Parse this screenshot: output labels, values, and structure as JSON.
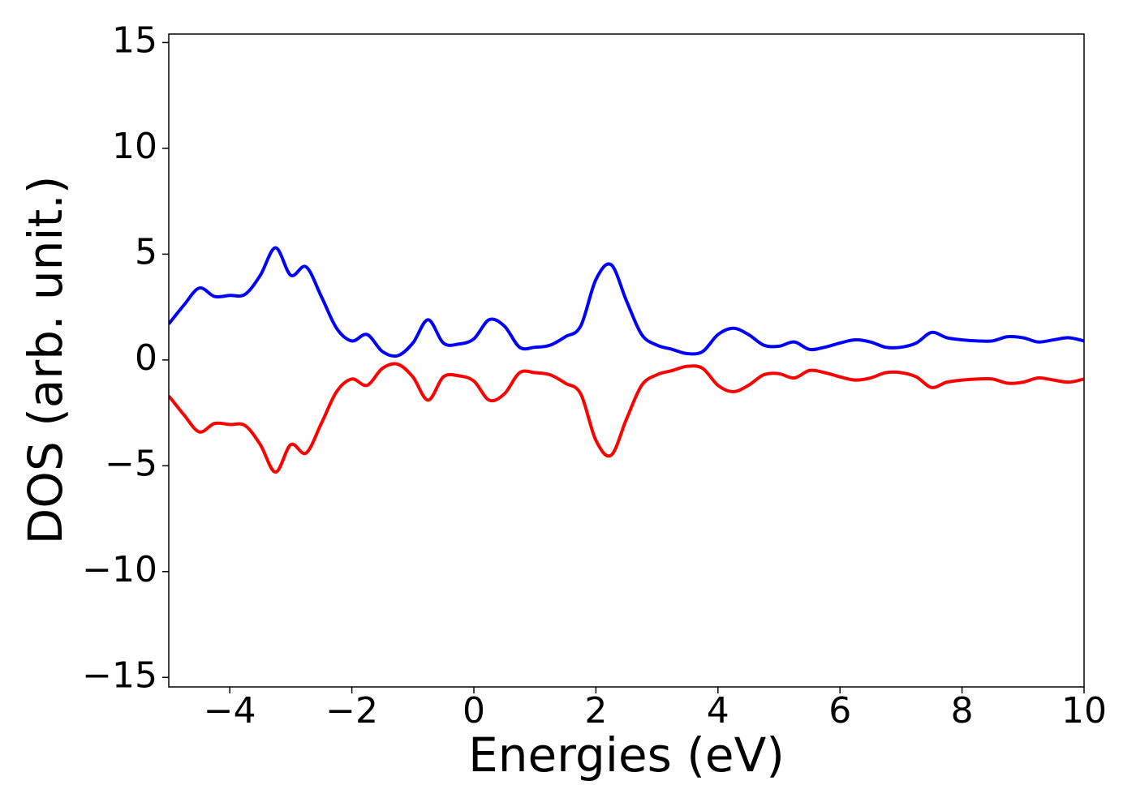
{
  "chart_data": {
    "type": "line",
    "xlabel": "Energies (eV)",
    "ylabel": "DOS (arb. unit.)",
    "x": [
      -5,
      -4.75,
      -4.5,
      -4.25,
      -4,
      -3.75,
      -3.5,
      -3.25,
      -3,
      -2.75,
      -2.5,
      -2.25,
      -2,
      -1.75,
      -1.5,
      -1.25,
      -1,
      -0.75,
      -0.5,
      -0.25,
      0,
      0.25,
      0.5,
      0.75,
      1,
      1.25,
      1.5,
      1.75,
      2,
      2.25,
      2.5,
      2.75,
      3,
      3.25,
      3.5,
      3.75,
      4,
      4.25,
      4.5,
      4.75,
      5,
      5.25,
      5.5,
      5.75,
      6,
      6.25,
      6.5,
      6.75,
      7,
      7.25,
      7.5,
      7.75,
      8,
      8.25,
      8.5,
      8.75,
      9,
      9.25,
      9.5,
      9.75,
      10
    ],
    "series": [
      {
        "color": "#0000ff",
        "values": [
          1.7,
          2.6,
          3.4,
          3.0,
          3.05,
          3.1,
          4.0,
          5.3,
          4.0,
          4.4,
          3.0,
          1.5,
          0.9,
          1.2,
          0.4,
          0.2,
          0.8,
          1.9,
          0.8,
          0.75,
          1.0,
          1.9,
          1.6,
          0.6,
          0.6,
          0.7,
          1.1,
          1.6,
          3.8,
          4.5,
          2.8,
          1.2,
          0.7,
          0.5,
          0.3,
          0.4,
          1.2,
          1.5,
          1.2,
          0.7,
          0.65,
          0.85,
          0.5,
          0.6,
          0.8,
          0.95,
          0.85,
          0.6,
          0.6,
          0.8,
          1.3,
          1.05,
          0.95,
          0.9,
          0.9,
          1.1,
          1.05,
          0.85,
          0.95,
          1.05,
          0.9
        ]
      },
      {
        "color": "#ff0000",
        "values": [
          -1.7,
          -2.6,
          -3.4,
          -3.0,
          -3.05,
          -3.1,
          -4.0,
          -5.3,
          -4.0,
          -4.4,
          -3.0,
          -1.5,
          -0.9,
          -1.2,
          -0.4,
          -0.2,
          -0.8,
          -1.9,
          -0.8,
          -0.75,
          -1.0,
          -1.9,
          -1.6,
          -0.6,
          -0.6,
          -0.7,
          -1.1,
          -1.6,
          -3.8,
          -4.5,
          -2.8,
          -1.2,
          -0.7,
          -0.5,
          -0.3,
          -0.4,
          -1.2,
          -1.5,
          -1.2,
          -0.7,
          -0.65,
          -0.85,
          -0.5,
          -0.6,
          -0.8,
          -0.95,
          -0.85,
          -0.6,
          -0.6,
          -0.8,
          -1.3,
          -1.05,
          -0.95,
          -0.9,
          -0.9,
          -1.1,
          -1.05,
          -0.85,
          -0.95,
          -1.05,
          -0.9
        ]
      }
    ],
    "xlim": [
      -5,
      10
    ],
    "xticks": [
      {
        "value": -4,
        "label": "−4"
      },
      {
        "value": -2,
        "label": "−2"
      },
      0,
      2,
      4,
      6,
      8,
      10
    ],
    "ylim": [
      -15.45,
      15.4
    ],
    "yticks": [
      {
        "value": -15,
        "label": "−15"
      },
      {
        "value": -10,
        "label": "−10"
      },
      {
        "value": -5,
        "label": "−5"
      },
      0,
      5,
      10,
      15
    ],
    "grid": false
  }
}
